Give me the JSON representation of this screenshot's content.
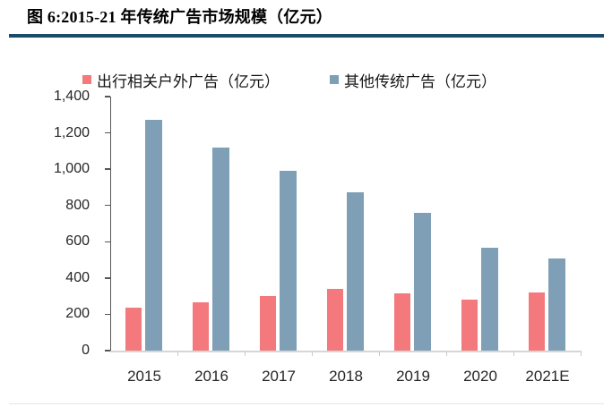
{
  "page": {
    "title": "图 6:2015-21 年传统广告市场规模（亿元）",
    "rule_color": "#1b4a6b"
  },
  "chart_data": {
    "type": "bar",
    "title": "图 6:2015-21 年传统广告市场规模（亿元）",
    "categories": [
      "2015",
      "2016",
      "2017",
      "2018",
      "2019",
      "2020",
      "2021E"
    ],
    "series": [
      {
        "key": "travel-outdoor-ads",
        "name": "出行相关户外广告（亿元）",
        "color": "#f4797c",
        "values": [
          235,
          265,
          300,
          340,
          315,
          280,
          320
        ]
      },
      {
        "key": "other-traditional-ads",
        "name": "其他传统广告（亿元）",
        "color": "#7f9fb6",
        "values": [
          1270,
          1120,
          990,
          875,
          760,
          565,
          510
        ]
      }
    ],
    "xlabel": "",
    "ylabel": "",
    "ylim": [
      0,
      1400
    ],
    "ytick_step": 200,
    "ytick_labels": [
      "0",
      "200",
      "400",
      "600",
      "800",
      "1,000",
      "1,200",
      "1,400"
    ],
    "legend_position": "top",
    "grid": false,
    "axis_colors": {
      "y_axis": "#565656",
      "x_axis": "#d6d6d6",
      "tick_label_color": "#262626"
    }
  }
}
